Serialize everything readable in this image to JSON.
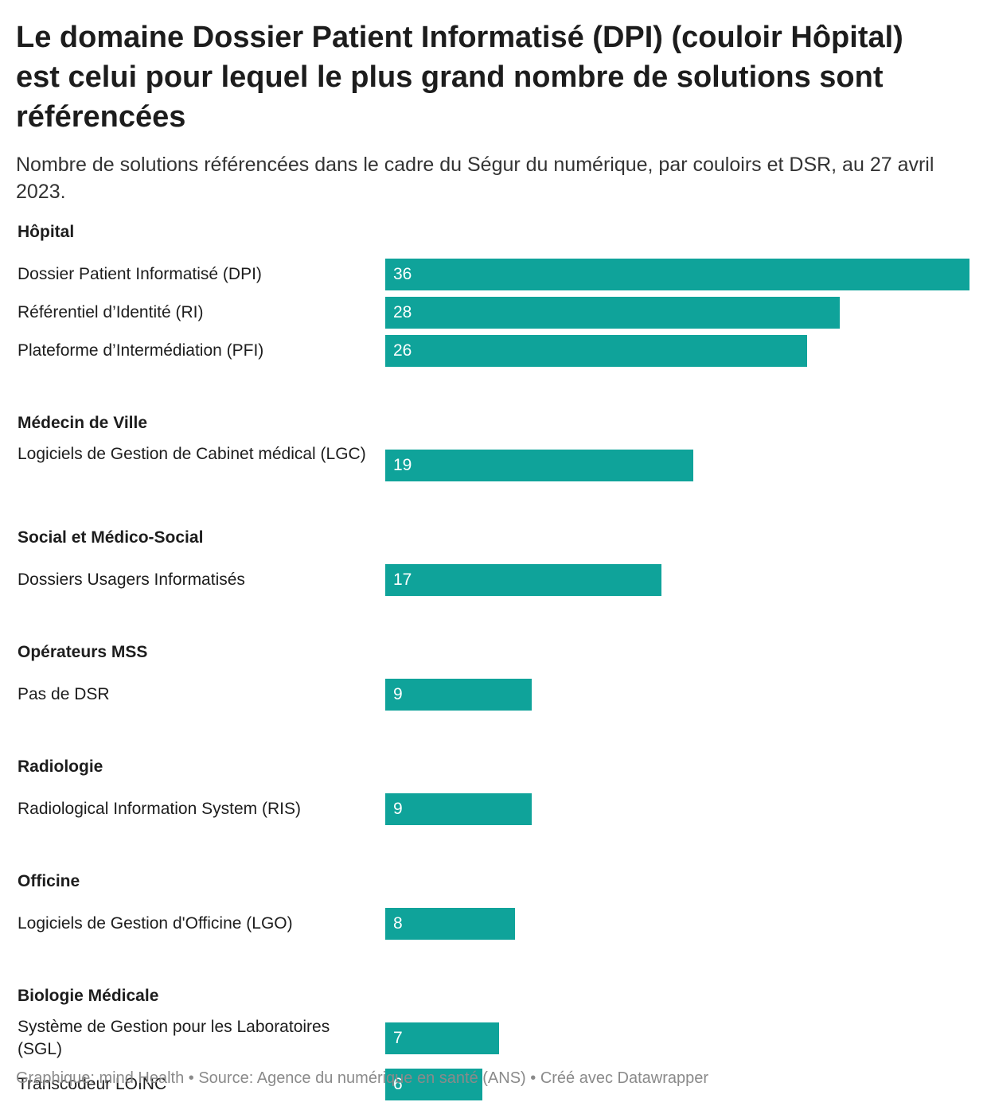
{
  "title": "Le domaine Dossier Patient Informatisé (DPI) (couloir Hôpital) est celui pour lequel le plus grand nombre de solutions sont référencées",
  "subtitle": "Nombre de solutions référencées dans le cadre du Ségur du numérique, par couloirs et DSR, au 27 avril 2023.",
  "footer": "Graphique: mind Health • Source: Agence du numérique en santé (ANS) • Créé avec Datawrapper",
  "colors": {
    "bar": "#0fa39a",
    "bar_text": "#ffffff"
  },
  "chart_data": {
    "type": "bar",
    "orientation": "horizontal",
    "xlim": [
      0,
      36
    ],
    "grid": false,
    "groups": [
      {
        "name": "Hôpital",
        "items": [
          {
            "label": "Dossier Patient Informatisé (DPI)",
            "value": 36
          },
          {
            "label": "Référentiel d’Identité (RI)",
            "value": 28
          },
          {
            "label": "Plateforme d’Intermédiation (PFI)",
            "value": 26
          }
        ]
      },
      {
        "name": "Médecin de Ville",
        "items": [
          {
            "label": "Logiciels de Gestion de Cabinet médical (LGC)",
            "value": 19
          }
        ]
      },
      {
        "name": "Social et Médico-Social",
        "items": [
          {
            "label": "Dossiers Usagers Informatisés",
            "value": 17
          }
        ]
      },
      {
        "name": "Opérateurs MSS",
        "items": [
          {
            "label": "Pas de DSR",
            "value": 9
          }
        ]
      },
      {
        "name": "Radiologie",
        "items": [
          {
            "label": "Radiological Information System (RIS)",
            "value": 9
          }
        ]
      },
      {
        "name": "Officine",
        "items": [
          {
            "label": "Logiciels de Gestion d'Officine (LGO)",
            "value": 8
          }
        ]
      },
      {
        "name": "Biologie Médicale",
        "items": [
          {
            "label": "Système de Gestion pour les Laboratoires (SGL)",
            "value": 7
          },
          {
            "label": "Transcodeur LOINC",
            "value": 6
          }
        ]
      }
    ]
  }
}
